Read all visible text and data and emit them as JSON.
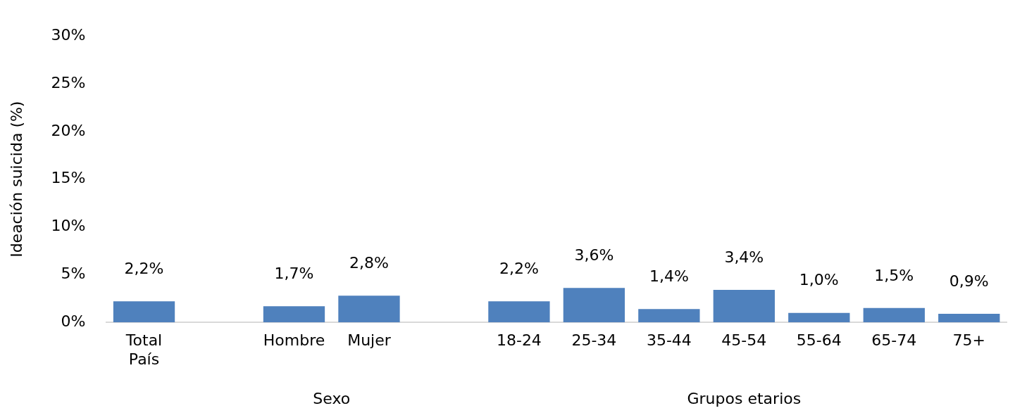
{
  "chart_data": {
    "type": "bar",
    "ylabel": "Ideación suicida (%)",
    "categories": [
      "Total País",
      null,
      "Hombre",
      "Mujer",
      null,
      "18-24",
      "25-34",
      "35-44",
      "45-54",
      "55-64",
      "65-74",
      "75+"
    ],
    "values": [
      2.2,
      null,
      1.7,
      2.8,
      null,
      2.2,
      3.6,
      1.4,
      3.4,
      1.0,
      1.5,
      0.9
    ],
    "value_labels": [
      "2,2%",
      null,
      "1,7%",
      "2,8%",
      null,
      "2,2%",
      "3,6%",
      "1,4%",
      "3,4%",
      "1,0%",
      "1,5%",
      "0,9%"
    ],
    "color": "#4f81bd",
    "ylim": [
      0,
      30
    ],
    "yticks": [
      {
        "value": 0,
        "label": "0%"
      },
      {
        "value": 5,
        "label": "5%"
      },
      {
        "value": 10,
        "label": "10%"
      },
      {
        "value": 15,
        "label": "15%"
      },
      {
        "value": 20,
        "label": "20%"
      },
      {
        "value": 25,
        "label": "25%"
      },
      {
        "value": 30,
        "label": "30%"
      }
    ],
    "annotations": [
      "Sexo",
      "Grupos etarios"
    ],
    "grid": false,
    "legend": false
  }
}
